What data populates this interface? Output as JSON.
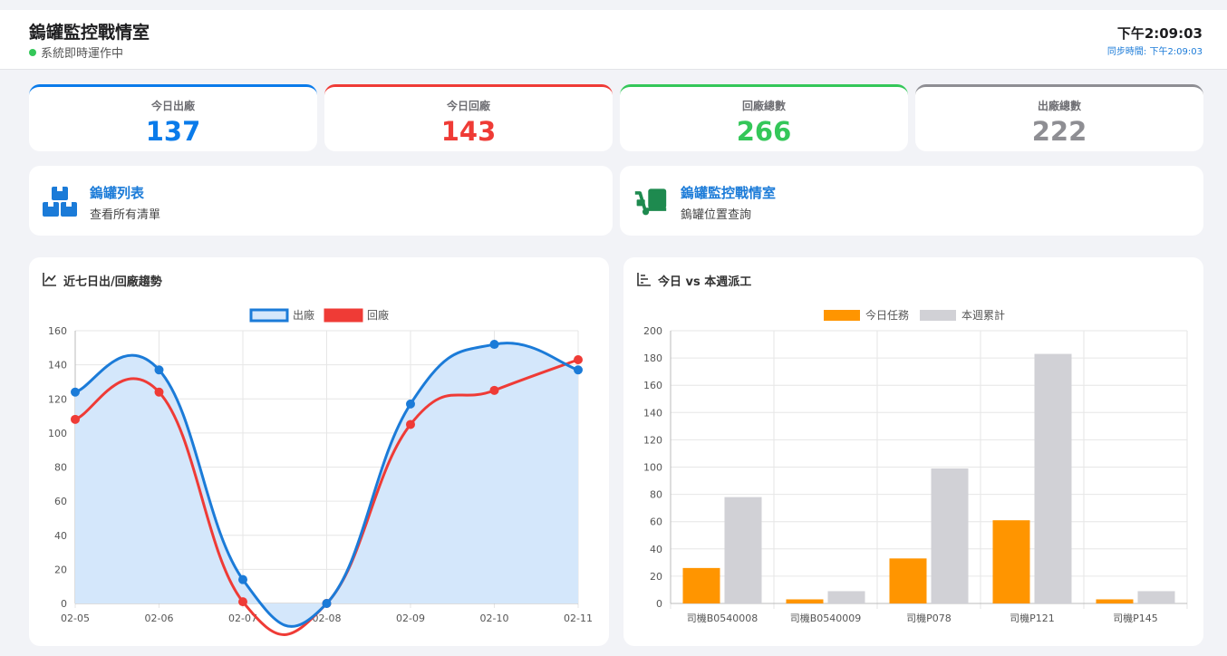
{
  "header": {
    "title": "鎢罐監控戰情室",
    "status": "系統即時運作中",
    "clock": "下午2:09:03",
    "sync": "同步時間: 下午2:09:03"
  },
  "stats": [
    {
      "label": "今日出廠",
      "value": "137",
      "color": "#0a7bea"
    },
    {
      "label": "今日回廠",
      "value": "143",
      "color": "#ef3b36"
    },
    {
      "label": "回廠總數",
      "value": "266",
      "color": "#34c759"
    },
    {
      "label": "出廠總數",
      "value": "222",
      "color": "#8e8e93"
    }
  ],
  "nav": [
    {
      "title": "鎢罐列表",
      "subtitle": "查看所有清單",
      "icon": "boxes-icon"
    },
    {
      "title": "鎢罐監控戰情室",
      "subtitle": "鎢罐位置查詢",
      "icon": "dolly-icon"
    }
  ],
  "panels": {
    "trend_title": "近七日出/回廠趨勢",
    "dispatch_title": "今日 vs 本週派工"
  },
  "chart_data": [
    {
      "type": "line",
      "x": [
        "02-05",
        "02-06",
        "02-07",
        "02-08",
        "02-09",
        "02-10",
        "02-11"
      ],
      "series": [
        {
          "name": "出廠",
          "values": [
            124,
            137,
            14,
            0,
            117,
            152,
            137
          ],
          "color": "#1b7bd8",
          "fill": "#d4e7fb"
        },
        {
          "name": "回廠",
          "values": [
            108,
            124,
            1,
            0,
            105,
            125,
            143
          ],
          "color": "#ef3b36"
        }
      ],
      "ylim": [
        0,
        160
      ],
      "yticks": [
        0,
        20,
        40,
        60,
        80,
        100,
        120,
        140,
        160
      ],
      "legend": "top",
      "grid": true
    },
    {
      "type": "bar",
      "categories": [
        "司機B0540008",
        "司機B0540009",
        "司機P078",
        "司機P121",
        "司機P145"
      ],
      "series": [
        {
          "name": "今日任務",
          "values": [
            26,
            3,
            33,
            61,
            3
          ],
          "color": "#ff9500"
        },
        {
          "name": "本週累計",
          "values": [
            78,
            9,
            99,
            183,
            9
          ],
          "color": "#d1d1d6"
        }
      ],
      "ylim": [
        0,
        200
      ],
      "yticks": [
        0,
        20,
        40,
        60,
        80,
        100,
        120,
        140,
        160,
        180,
        200
      ],
      "legend": "top",
      "grid": true
    }
  ]
}
